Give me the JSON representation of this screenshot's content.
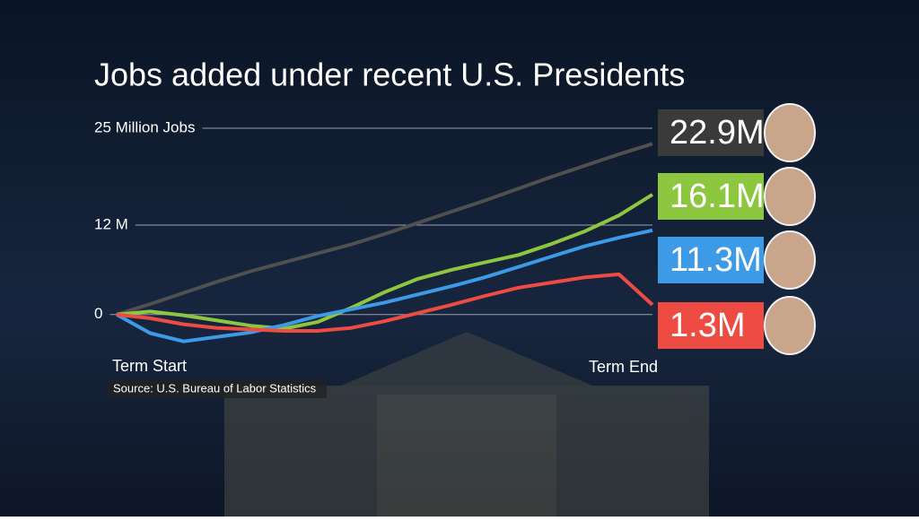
{
  "chart_data": {
    "type": "line",
    "title": "Jobs added under recent U.S. Presidents",
    "source": "Source: U.S. Bureau of Labor Statistics",
    "x_labels": [
      "Term Start",
      "Term End"
    ],
    "x": [
      0,
      1,
      2,
      3,
      4,
      5,
      6,
      7,
      8,
      9,
      10,
      11,
      12,
      13,
      14,
      15,
      16
    ],
    "xlim": [
      0,
      16
    ],
    "ylim": [
      -4,
      28
    ],
    "yticks": [
      {
        "value": 25,
        "label": "25 Million Jobs"
      },
      {
        "value": 12,
        "label": "12 M"
      },
      0
    ],
    "grid": true,
    "series": [
      {
        "color": "#505050",
        "box_color": "#3a3a3a",
        "end_label": "22.9M",
        "values": [
          0,
          1.4,
          2.9,
          4.4,
          5.8,
          7.0,
          8.2,
          9.4,
          10.8,
          12.3,
          13.8,
          15.3,
          16.9,
          18.5,
          20.0,
          21.5,
          22.9
        ]
      },
      {
        "color": "#8dc63f",
        "box_color": "#8dc63f",
        "end_label": "16.1M",
        "values": [
          0,
          0.4,
          -0.1,
          -0.8,
          -1.5,
          -1.9,
          -1.0,
          0.9,
          3.0,
          4.8,
          6.0,
          7.0,
          8.0,
          9.5,
          11.2,
          13.3,
          16.1
        ]
      },
      {
        "color": "#3c9ae6",
        "box_color": "#3c9ae6",
        "end_label": "11.3M",
        "values": [
          0,
          -2.5,
          -3.6,
          -3.0,
          -2.4,
          -1.4,
          -0.2,
          0.7,
          1.6,
          2.7,
          3.8,
          5.0,
          6.4,
          7.8,
          9.2,
          10.3,
          11.3
        ]
      },
      {
        "color": "#ee4b43",
        "box_color": "#ee4b43",
        "end_label": "1.3M",
        "values": [
          0,
          -0.5,
          -1.3,
          -1.8,
          -2.0,
          -2.2,
          -2.2,
          -1.8,
          -0.9,
          0.2,
          1.3,
          2.5,
          3.6,
          4.3,
          5.0,
          5.4,
          1.3
        ]
      }
    ]
  }
}
